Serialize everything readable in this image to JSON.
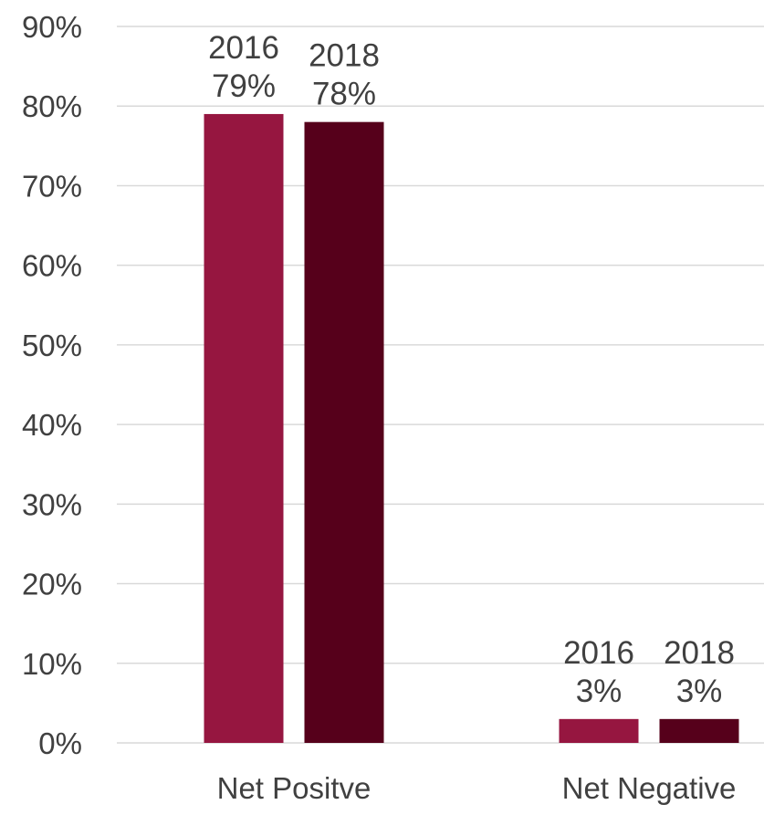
{
  "chart_data": {
    "type": "bar",
    "categories": [
      "Net Positve",
      "Net Negative"
    ],
    "series": [
      {
        "name": "2016",
        "values": [
          79,
          3
        ],
        "labels": [
          "79%",
          "3%"
        ],
        "color": "#961640"
      },
      {
        "name": "2018",
        "values": [
          78,
          3
        ],
        "labels": [
          "78%",
          "3%"
        ],
        "color": "#56001b"
      }
    ],
    "title": "",
    "xlabel": "",
    "ylabel": "",
    "ylim": [
      0,
      90
    ],
    "yticks": [
      "0%",
      "10%",
      "20%",
      "30%",
      "40%",
      "50%",
      "60%",
      "70%",
      "80%",
      "90%"
    ],
    "grid": true,
    "legend": "none"
  }
}
